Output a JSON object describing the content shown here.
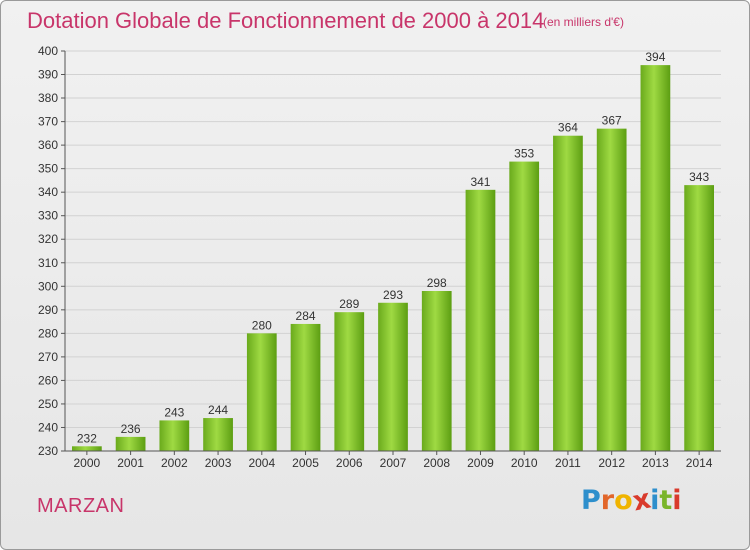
{
  "title": "Dotation Globale de Fonctionnement de 2000 à 2014",
  "subtitle": "(en milliers d'€)",
  "commune": "MARZAN",
  "logo": {
    "text": "Proxiti",
    "letter_colors": [
      "#2e8fcc",
      "#e2662a",
      "#f0b400",
      "#d93a2c",
      "#2e8fcc",
      "#7ab52a",
      "#d93a2c"
    ]
  },
  "colors": {
    "title": "#c8356a",
    "bar_light": "#9ad83a",
    "bar_dark": "#5c9e12",
    "grid": "#d2d2d2"
  },
  "chart_data": {
    "type": "bar",
    "title": "Dotation Globale de Fonctionnement de 2000 à 2014",
    "subtitle": "(en milliers d'€)",
    "categories": [
      "2000",
      "2001",
      "2002",
      "2003",
      "2004",
      "2005",
      "2006",
      "2007",
      "2008",
      "2009",
      "2010",
      "2011",
      "2012",
      "2013",
      "2014"
    ],
    "values": [
      232,
      236,
      243,
      244,
      280,
      284,
      289,
      293,
      298,
      341,
      353,
      364,
      367,
      394,
      343
    ],
    "ylim": [
      230,
      400
    ],
    "yticks": [
      230,
      240,
      250,
      260,
      270,
      280,
      290,
      300,
      310,
      320,
      330,
      340,
      350,
      360,
      370,
      380,
      390,
      400
    ],
    "grid": true,
    "data_labels": true,
    "legend": "none"
  }
}
